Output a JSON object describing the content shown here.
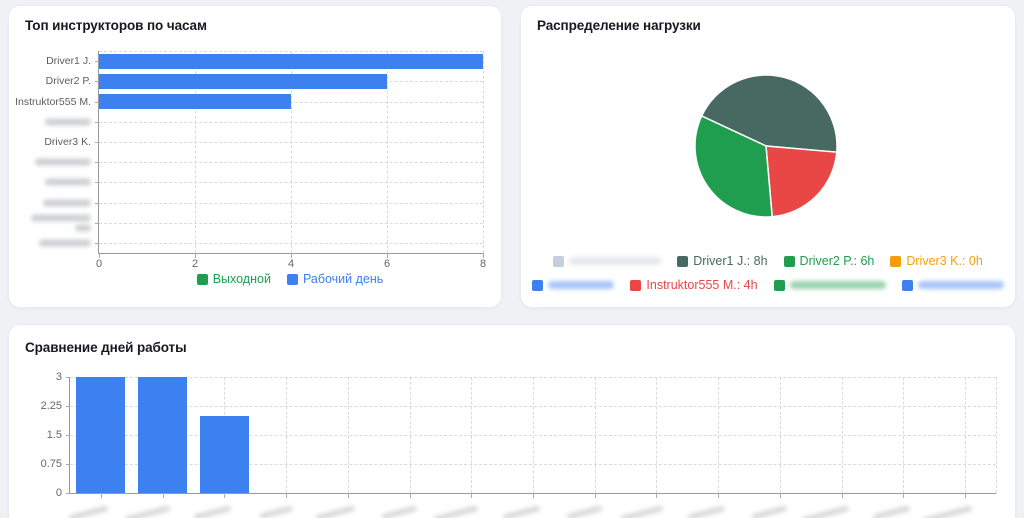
{
  "page": {
    "background": "#eff1f5"
  },
  "cards": {
    "top_instructors": {
      "title": "Топ инструкторов по часам"
    },
    "load_distribution": {
      "title": "Распределение нагрузки"
    },
    "work_days": {
      "title": "Сравнение дней работы"
    }
  },
  "colors": {
    "bar_blue": "#3d80f0",
    "green": "#1f9e50",
    "dark_slate": "#476962",
    "red": "#e84746",
    "orange": "#f59e0b",
    "redacted_gray": "#c4cedc"
  },
  "chart_data": [
    {
      "type": "bar",
      "orientation": "horizontal",
      "title": "Топ инструкторов по часам",
      "xlabel": "",
      "ylabel": "",
      "xlim": [
        0,
        8
      ],
      "x_ticks": [
        "0",
        "2",
        "4",
        "6",
        "8"
      ],
      "grid": "dashed",
      "bar_color": "#3d80f0",
      "categories": [
        {
          "label": "Driver1 J.",
          "value": 8
        },
        {
          "label": "Driver2 P.",
          "value": 6
        },
        {
          "label": "Instruktor555 M.",
          "value": 4
        },
        {
          "label": "",
          "value": 0,
          "redacted": true,
          "smear_width": 46
        },
        {
          "label": "Driver3 K.",
          "value": 0
        },
        {
          "label": "",
          "value": 0,
          "redacted": true,
          "smear_width": 56
        },
        {
          "label": "",
          "value": 0,
          "redacted": true,
          "smear_width": 46
        },
        {
          "label": "",
          "value": 0,
          "redacted": true,
          "smear_width": 48
        },
        {
          "label": "",
          "value": 0,
          "redacted": true,
          "smear_width": 60,
          "smear_lines": 2
        },
        {
          "label": "",
          "value": 0,
          "redacted": true,
          "smear_width": 52
        }
      ],
      "legend": [
        {
          "label": "Выходной",
          "color": "#1f9e50"
        },
        {
          "label": "Рабочий день",
          "color": "#3d80f0"
        }
      ],
      "legend_position": "bottom"
    },
    {
      "type": "pie",
      "title": "Распределение нагрузки",
      "start_angle_deg": -65,
      "slices": [
        {
          "label": "Driver1 J.: 8h",
          "value": 8,
          "color": "#476962"
        },
        {
          "label": "Instruktor555 M.: 4h",
          "value": 4,
          "color": "#e84746"
        },
        {
          "label": "Driver2 P.: 6h",
          "value": 6,
          "color": "#1f9e50"
        }
      ],
      "legend_position": "bottom",
      "legend_rows": [
        [
          {
            "label": "",
            "redacted": true,
            "color": "#c4cedc",
            "smear_width": 92
          },
          {
            "label": "Driver1 J.: 8h",
            "color": "#476962"
          },
          {
            "label": "Driver2 P.: 6h",
            "color": "#1f9e50"
          },
          {
            "label": "Driver3 K.: 0h",
            "color": "#f59e0b"
          }
        ],
        [
          {
            "label": "",
            "redacted": true,
            "color": "#3d80f0",
            "smear_width": 66
          },
          {
            "label": "Instruktor555 M.: 4h",
            "color": "#e84746"
          },
          {
            "label": "",
            "redacted": true,
            "color": "#1f9e50",
            "smear_width": 96
          },
          {
            "label": "",
            "redacted": true,
            "color": "#3d80f0",
            "smear_width": 86
          }
        ]
      ]
    },
    {
      "type": "bar",
      "orientation": "vertical",
      "title": "Сравнение дней работы",
      "xlabel": "",
      "ylabel": "",
      "ylim": [
        0,
        3
      ],
      "y_ticks": [
        "3",
        "2.25",
        "1.5",
        "0.75",
        "0"
      ],
      "grid": "dashed",
      "bar_color": "#3d80f0",
      "values": [
        3,
        3,
        2,
        0,
        0,
        0,
        0,
        0,
        0,
        0,
        0,
        0,
        0,
        0,
        0
      ],
      "x_labels_redacted": true,
      "x_smear_widths": [
        40,
        46,
        38,
        34,
        40,
        36,
        46,
        38,
        36,
        44,
        38,
        36,
        48,
        38,
        50
      ]
    }
  ]
}
